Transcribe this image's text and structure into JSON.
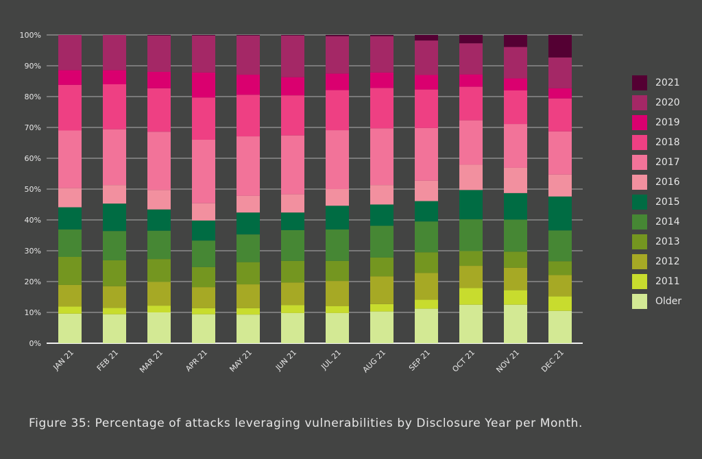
{
  "chart_data": {
    "type": "bar",
    "stacked": true,
    "title": "",
    "xlabel": "",
    "ylabel": "",
    "ylim": [
      0,
      100
    ],
    "yticks": [
      "0%",
      "10%",
      "20%",
      "30%",
      "40%",
      "50%",
      "60%",
      "70%",
      "80%",
      "90%",
      "100%"
    ],
    "grid": true,
    "legend_position": "right",
    "categories": [
      "JAN 21",
      "FEB 21",
      "MAR 21",
      "APR 21",
      "MAY 21",
      "JUN 21",
      "JUL 21",
      "AUG 21",
      "SEP 21",
      "OCT 21",
      "NOV 21",
      "DEC 21"
    ],
    "series": [
      {
        "name": "Older",
        "color": "#d3e994",
        "values": [
          9.6,
          9.4,
          10.0,
          9.4,
          9.3,
          9.8,
          9.8,
          10.3,
          11.2,
          12.5,
          12.5,
          10.5
        ]
      },
      {
        "name": "2011",
        "color": "#c8dc2e",
        "values": [
          2.3,
          2.1,
          2.2,
          2.0,
          2.1,
          2.6,
          2.2,
          2.4,
          2.9,
          5.4,
          4.7,
          4.7
        ]
      },
      {
        "name": "2012",
        "color": "#a6a925",
        "values": [
          7.0,
          7.0,
          7.7,
          6.8,
          7.7,
          7.3,
          8.2,
          9.0,
          8.7,
          7.2,
          7.3,
          6.9
        ]
      },
      {
        "name": "2013",
        "color": "#749620",
        "values": [
          9.1,
          8.4,
          7.4,
          6.5,
          7.2,
          7.0,
          6.5,
          6.1,
          6.7,
          4.8,
          5.2,
          4.5
        ]
      },
      {
        "name": "2014",
        "color": "#468734",
        "values": [
          8.9,
          9.5,
          9.2,
          8.6,
          9.0,
          10.0,
          10.2,
          10.3,
          10.0,
          10.3,
          10.4,
          10.0
        ]
      },
      {
        "name": "2015",
        "color": "#006c43",
        "values": [
          7.2,
          8.9,
          6.9,
          6.5,
          7.1,
          5.7,
          7.7,
          6.9,
          6.6,
          9.5,
          8.6,
          11.0
        ]
      },
      {
        "name": "2016",
        "color": "#f2909f",
        "values": [
          6.2,
          6.0,
          6.3,
          5.6,
          5.4,
          5.9,
          5.4,
          6.3,
          6.6,
          8.2,
          8.2,
          7.1
        ]
      },
      {
        "name": "2017",
        "color": "#f27399",
        "values": [
          18.7,
          18.1,
          18.9,
          20.6,
          19.3,
          19.1,
          19.1,
          18.4,
          17.1,
          14.4,
          14.2,
          14.0
        ]
      },
      {
        "name": "2018",
        "color": "#ee4083",
        "values": [
          14.8,
          14.6,
          14.1,
          13.7,
          13.5,
          13.0,
          13.0,
          13.1,
          12.5,
          10.9,
          10.9,
          10.7
        ]
      },
      {
        "name": "2019",
        "color": "#da006f",
        "values": [
          4.8,
          4.6,
          5.3,
          8.1,
          6.5,
          5.9,
          5.4,
          5.0,
          4.7,
          4.0,
          3.9,
          3.3
        ]
      },
      {
        "name": "2020",
        "color": "#a42866",
        "values": [
          11.4,
          11.4,
          11.8,
          12.0,
          12.7,
          13.5,
          12.1,
          11.8,
          11.2,
          10.1,
          10.2,
          10.0
        ]
      },
      {
        "name": "2021",
        "color": "#540033",
        "values": [
          0,
          0,
          0.2,
          0.2,
          0.2,
          0.2,
          0.4,
          0.4,
          1.8,
          2.7,
          3.9,
          7.3
        ]
      }
    ]
  },
  "caption": "Figure 35: Percentage of attacks leveraging vulnerabilities by Disclosure Year per Month."
}
